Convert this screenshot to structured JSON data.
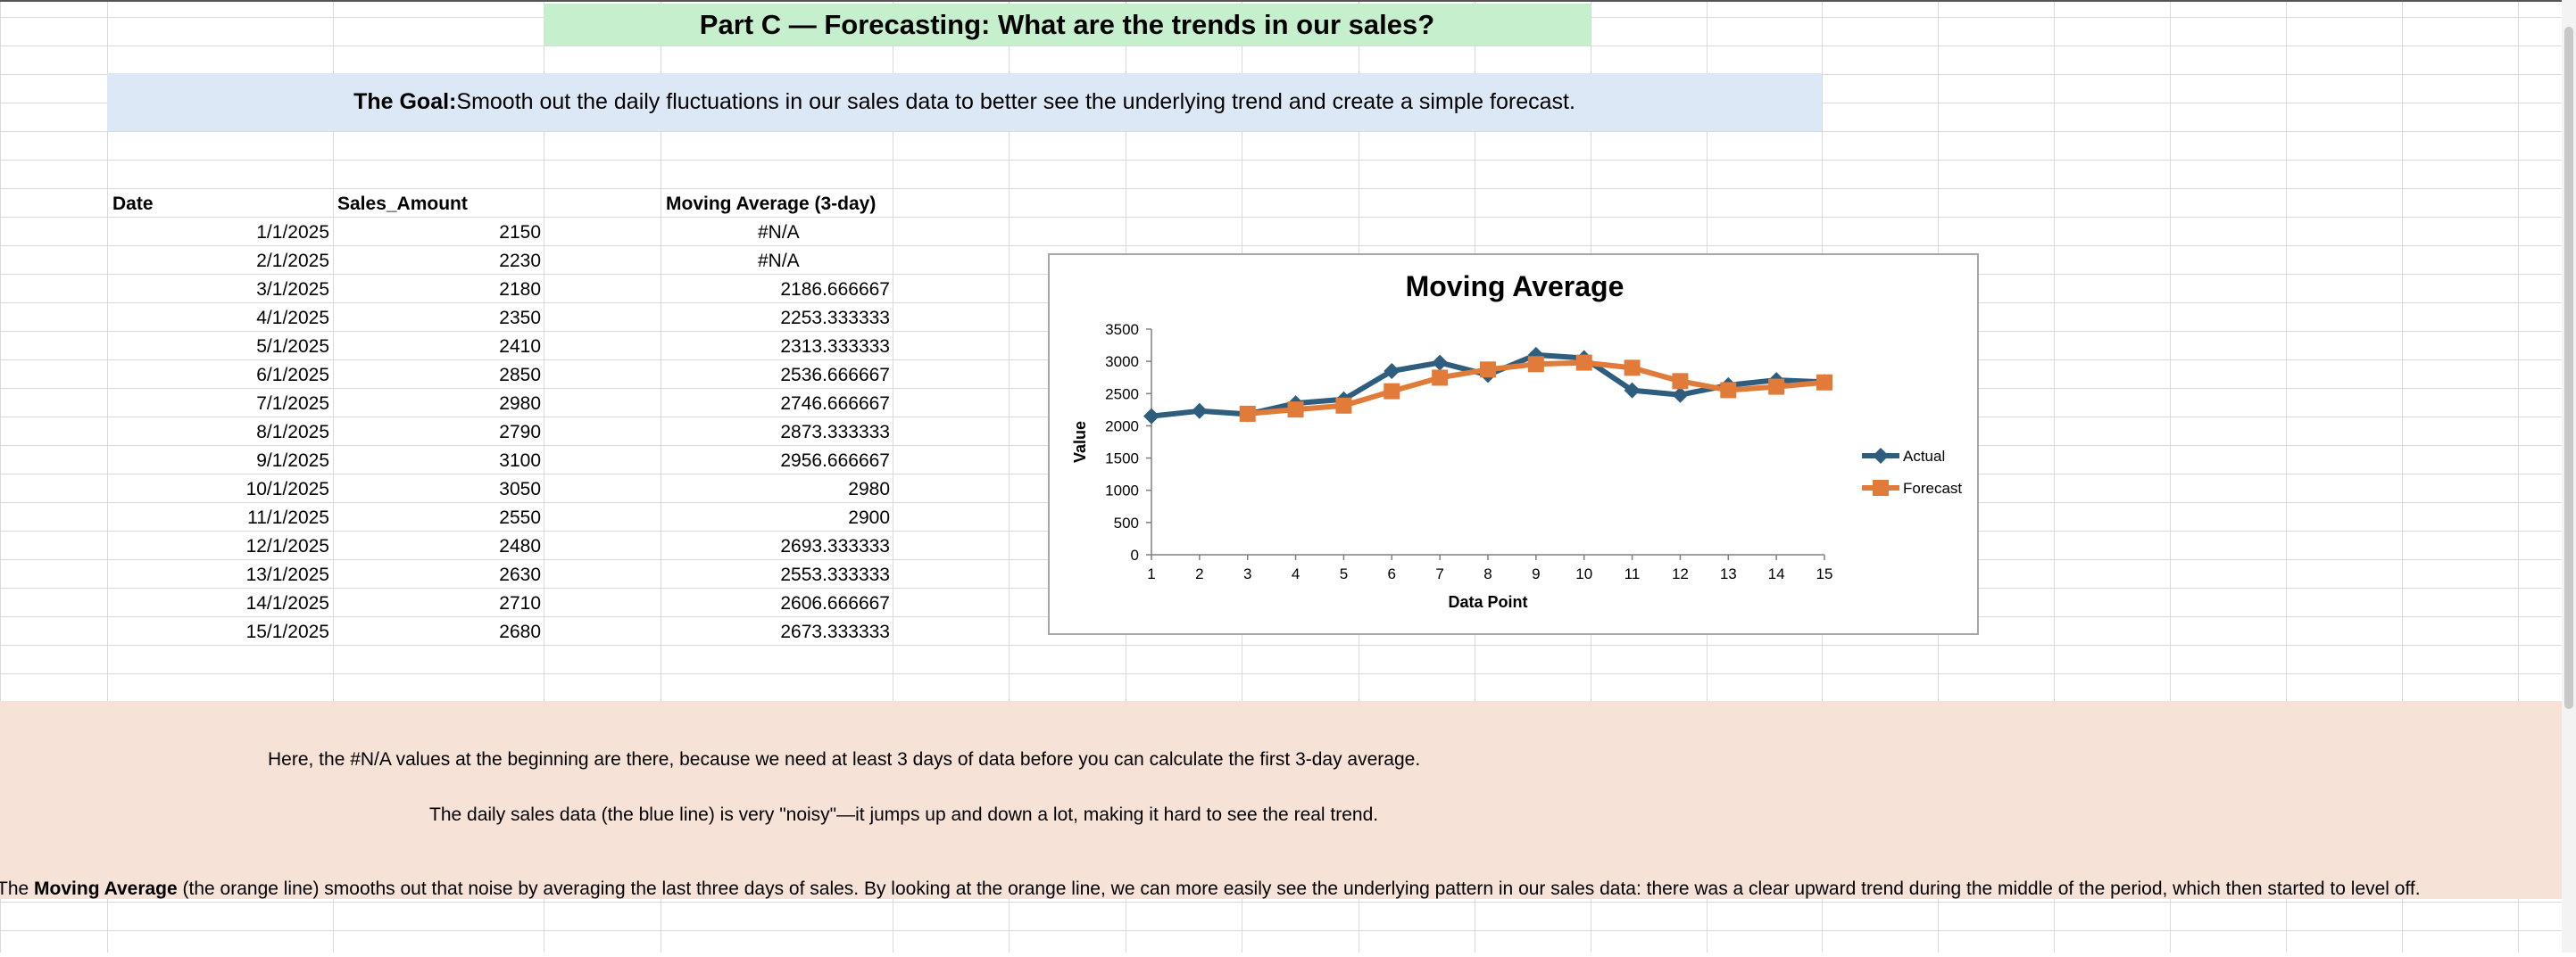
{
  "sheet": {
    "title": "Part C — Forecasting: What are the trends in our sales?",
    "goal_label": "The Goal:",
    "goal_text": " Smooth out the daily fluctuations in our sales data to better see the underlying trend and create a simple forecast."
  },
  "table": {
    "headers": [
      "Date",
      "Sales_Amount",
      "Moving Average (3-day)"
    ],
    "rows": [
      [
        "1/1/2025",
        "2150",
        "#N/A"
      ],
      [
        "2/1/2025",
        "2230",
        "#N/A"
      ],
      [
        "3/1/2025",
        "2180",
        "2186.666667"
      ],
      [
        "4/1/2025",
        "2350",
        "2253.333333"
      ],
      [
        "5/1/2025",
        "2410",
        "2313.333333"
      ],
      [
        "6/1/2025",
        "2850",
        "2536.666667"
      ],
      [
        "7/1/2025",
        "2980",
        "2746.666667"
      ],
      [
        "8/1/2025",
        "2790",
        "2873.333333"
      ],
      [
        "9/1/2025",
        "3100",
        "2956.666667"
      ],
      [
        "10/1/2025",
        "3050",
        "2980"
      ],
      [
        "11/1/2025",
        "2550",
        "2900"
      ],
      [
        "12/1/2025",
        "2480",
        "2693.333333"
      ],
      [
        "13/1/2025",
        "2630",
        "2553.333333"
      ],
      [
        "14/1/2025",
        "2710",
        "2606.666667"
      ],
      [
        "15/1/2025",
        "2680",
        "2673.333333"
      ]
    ]
  },
  "notes": {
    "line1": "Here, the #N/A values at the beginning are there, because we need at least 3 days of data before you can calculate the first 3-day average.",
    "line2": "The daily sales data (the blue line) is very \"noisy\"—it jumps up and down a lot, making it hard to see the real trend.",
    "line3_prefix": "The ",
    "line3_bold": "Moving Average",
    "line3_suffix": " (the orange line) smooths out that noise by averaging the last three days of sales. By looking at the orange line, we can more easily see the underlying pattern in our sales data: there was a clear upward trend during the middle of the period, which then started to level off."
  },
  "colors": {
    "actual": "#2e5d7e",
    "forecast": "#e07b39",
    "title_band": "#c6efce",
    "goal_band": "#dde8f6",
    "notes_band": "#f7e2d8",
    "gridline": "#d9d9d9"
  },
  "chart_data": {
    "type": "line",
    "title": "Moving Average",
    "xlabel": "Data Point",
    "ylabel": "Value",
    "x": [
      1,
      2,
      3,
      4,
      5,
      6,
      7,
      8,
      9,
      10,
      11,
      12,
      13,
      14,
      15
    ],
    "ylim": [
      0,
      3500
    ],
    "yticks": [
      0,
      500,
      1000,
      1500,
      2000,
      2500,
      3000,
      3500
    ],
    "grid": false,
    "legend": "right",
    "series": [
      {
        "name": "Actual",
        "marker": "diamond",
        "values": [
          2150,
          2230,
          2180,
          2350,
          2410,
          2850,
          2980,
          2790,
          3100,
          3050,
          2550,
          2480,
          2630,
          2710,
          2680
        ]
      },
      {
        "name": "Forecast",
        "marker": "square",
        "values": [
          null,
          null,
          2186.67,
          2253.33,
          2313.33,
          2536.67,
          2746.67,
          2873.33,
          2956.67,
          2980,
          2900,
          2693.33,
          2553.33,
          2606.67,
          2673.33
        ]
      }
    ]
  }
}
